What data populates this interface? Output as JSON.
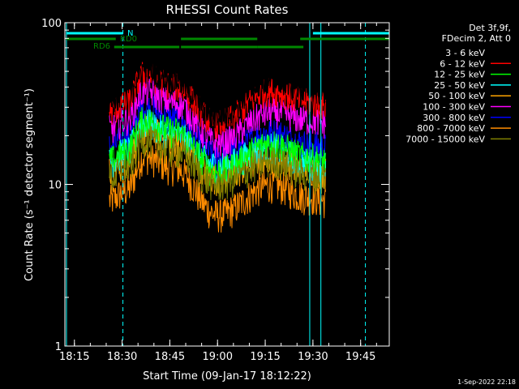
{
  "chart_data": {
    "type": "line",
    "title": "RHESSI Count Rates",
    "xlabel": "Start Time (09-Jan-17 18:12:22)",
    "ylabel": "Count Rate (s⁻¹ detector segment⁻¹)",
    "yscale": "log",
    "ylim": [
      1,
      100
    ],
    "xlim": [
      "18:12",
      "19:54"
    ],
    "x_ticks": [
      "18:15",
      "18:30",
      "18:45",
      "19:00",
      "19:15",
      "19:30",
      "19:45"
    ],
    "y_ticks": [
      "1",
      "10",
      "100"
    ],
    "legend_header": [
      "Det 3f,9f,",
      "FDecim 2, Att 0"
    ],
    "legend_position": "top-right",
    "timestamp": "1-Sep-2022 22:18",
    "data_start": "18:26",
    "data_end": "19:34",
    "series": [
      {
        "name": "3 - 6 keV",
        "color": "#000000",
        "level_start": 34,
        "level_peak": 52,
        "level_dip": 27,
        "level_second_peak": 45,
        "level_end": 38
      },
      {
        "name": "6 - 12 keV",
        "color": "#ff0000",
        "level_start": 28,
        "level_peak": 48,
        "level_dip": 24,
        "level_second_peak": 38,
        "level_end": 31
      },
      {
        "name": "12 - 25 keV",
        "color": "#00ff00",
        "level_start": 14,
        "level_peak": 25,
        "level_dip": 12,
        "level_second_peak": 18,
        "level_end": 14
      },
      {
        "name": "25 - 50 keV",
        "color": "#00ffff",
        "level_start": 14,
        "level_peak": 24,
        "level_dip": 13,
        "level_second_peak": 17,
        "level_end": 13
      },
      {
        "name": "50 - 100 keV",
        "color": "#ffa500",
        "level_start": 12,
        "level_peak": 22,
        "level_dip": 11,
        "level_second_peak": 15,
        "level_end": 12
      },
      {
        "name": "100 - 300 keV",
        "color": "#ff00ff",
        "level_start": 22,
        "level_peak": 38,
        "level_dip": 18,
        "level_second_peak": 28,
        "level_end": 24
      },
      {
        "name": "300 - 800 keV",
        "color": "#0000ff",
        "level_start": 17,
        "level_peak": 30,
        "level_dip": 15,
        "level_second_peak": 21,
        "level_end": 17
      },
      {
        "name": "800 - 7000 keV",
        "color": "#ff8c00",
        "level_start": 8,
        "level_peak": 15,
        "level_dip": 6.5,
        "level_second_peak": 10,
        "level_end": 8
      },
      {
        "name": "7000 - 15000 keV",
        "color": "#808000",
        "level_start": 11,
        "level_peak": 19,
        "level_dip": 10,
        "level_second_peak": 14,
        "level_end": 11
      }
    ],
    "vertical_lines": [
      {
        "time": "18:12:30",
        "style": "solid",
        "color": "#00ffff"
      },
      {
        "time": "18:30:15",
        "style": "dashed",
        "color": "#00ffff"
      },
      {
        "time": "19:29:00",
        "style": "solid",
        "color": "#00ffff"
      },
      {
        "time": "19:32:30",
        "style": "solid",
        "color": "#00ffff"
      },
      {
        "time": "19:46:30",
        "style": "dashed",
        "color": "#00ffff"
      }
    ],
    "flag_bars": [
      {
        "label": "N",
        "color": "#00ffff",
        "level": 0,
        "intervals": [
          [
            "18:12:30",
            "18:30:15"
          ],
          [
            "19:30:00",
            "19:54:00"
          ]
        ]
      },
      {
        "label": "RD0",
        "color": "#008800",
        "level": 1,
        "intervals": [
          [
            "18:12:30",
            "18:28:00"
          ],
          [
            "19:26:00",
            "19:54:00"
          ]
        ]
      },
      {
        "label": "RD6",
        "color": "#008800",
        "level": 2,
        "intervals": [
          [
            "18:27:30",
            "18:48:00"
          ],
          [
            "18:48:30",
            "19:12:30"
          ],
          [
            "19:12:30",
            "19:27:00"
          ]
        ]
      }
    ],
    "flag_level_rd0": [
      [
        "18:48:30",
        "19:12:30"
      ]
    ]
  }
}
